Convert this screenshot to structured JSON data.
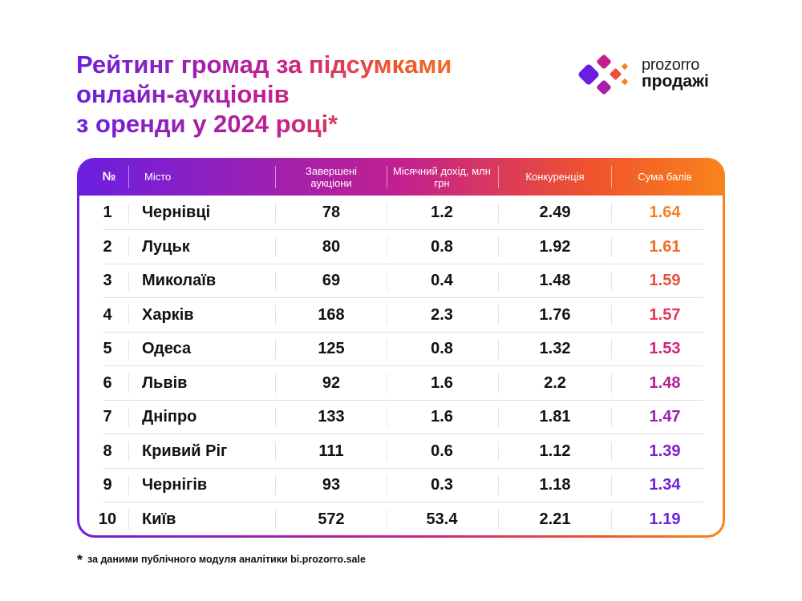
{
  "title": {
    "lines": [
      "Рейтинг громад за підсумками",
      "онлайн-аукціонів",
      "з оренди у 2024 році*"
    ]
  },
  "logo": {
    "line1": "prozorro",
    "line2": "продажі"
  },
  "table": {
    "headers": [
      "№",
      "Місто",
      "Завершені аукціони",
      "Місячний дохід, млн грн",
      "Конкуренція",
      "Сума балів"
    ],
    "rows": [
      {
        "n": "1",
        "city": "Чернівці",
        "auctions": "78",
        "income": "1.2",
        "competition": "2.49",
        "score": "1.64",
        "color": "#f4801f"
      },
      {
        "n": "2",
        "city": "Луцьк",
        "auctions": "80",
        "income": "0.8",
        "competition": "1.92",
        "score": "1.61",
        "color": "#f06a26"
      },
      {
        "n": "3",
        "city": "Миколаїв",
        "auctions": "69",
        "income": "0.4",
        "competition": "1.48",
        "score": "1.59",
        "color": "#ec4e3a"
      },
      {
        "n": "4",
        "city": "Харків",
        "auctions": "168",
        "income": "2.3",
        "competition": "1.76",
        "score": "1.57",
        "color": "#e3345a"
      },
      {
        "n": "5",
        "city": "Одеса",
        "auctions": "125",
        "income": "0.8",
        "competition": "1.32",
        "score": "1.53",
        "color": "#cf2478"
      },
      {
        "n": "6",
        "city": "Львів",
        "auctions": "92",
        "income": "1.6",
        "competition": "2.2",
        "score": "1.48",
        "color": "#b51e95"
      },
      {
        "n": "7",
        "city": "Дніпро",
        "auctions": "133",
        "income": "1.6",
        "competition": "1.81",
        "score": "1.47",
        "color": "#961eb0"
      },
      {
        "n": "8",
        "city": "Кривий Ріг",
        "auctions": "111",
        "income": "0.6",
        "competition": "1.12",
        "score": "1.39",
        "color": "#7d1fca"
      },
      {
        "n": "9",
        "city": "Чернігів",
        "auctions": "93",
        "income": "0.3",
        "competition": "1.18",
        "score": "1.34",
        "color": "#6e1fd8"
      },
      {
        "n": "10",
        "city": "Київ",
        "auctions": "572",
        "income": "53.4",
        "competition": "2.21",
        "score": "1.19",
        "color": "#6a1fe0"
      }
    ]
  },
  "footnote": {
    "mark": "*",
    "text": "за даними публічного модуля аналітики bi.prozorro.sale"
  }
}
